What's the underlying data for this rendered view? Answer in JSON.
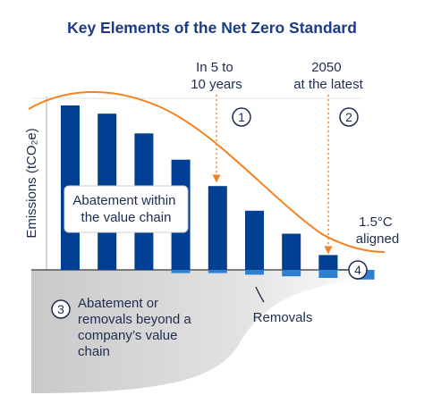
{
  "chart_data": {
    "type": "bar",
    "title": "Key Elements of the Net Zero Standard",
    "ylabel": "Emissions (tCO₂e)",
    "xlabel": "",
    "categories": [
      "",
      "",
      "",
      "",
      "",
      "",
      "",
      "",
      ""
    ],
    "series": [
      {
        "values": [
          100,
          95,
          83,
          67,
          51,
          36,
          22,
          9,
          0
        ]
      },
      {
        "values": [
          0,
          0,
          0,
          -4,
          -4,
          -6,
          -8,
          -10,
          -12
        ]
      }
    ],
    "ylim": [
      -25,
      110
    ],
    "grid": false,
    "annotations": {
      "timeline_1": [
        "In 5 to",
        "10 years"
      ],
      "timeline_2": [
        "2050",
        "at the latest"
      ],
      "curve_label": [
        "1.5°C",
        "aligned"
      ],
      "box_label": [
        "Abatement within",
        "the value chain"
      ],
      "removals_label": "Removals",
      "beyond_label": [
        "Abatement or",
        "removals beyond a",
        "company’s value",
        "chain"
      ],
      "markers": [
        "1",
        "2",
        "3",
        "4"
      ]
    },
    "colors": {
      "bar": "#003f91",
      "removal_bar": "#2f7fd0",
      "curve": "#f58220",
      "title": "#1b3a8a",
      "gray_region": "#d6d6d6"
    }
  }
}
